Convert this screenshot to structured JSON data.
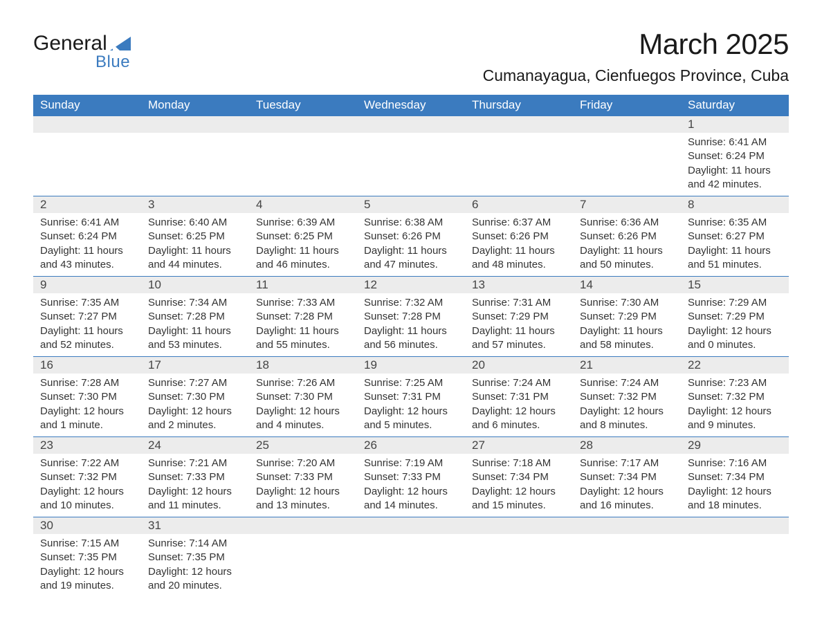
{
  "logo": {
    "main": "General",
    "sub": "Blue",
    "triangle_color": "#3b7bbf",
    "text_color": "#1a1a1a"
  },
  "title": "March 2025",
  "location": "Cumanayagua, Cienfuegos Province, Cuba",
  "colors": {
    "header_bg": "#3b7bbf",
    "header_text": "#ffffff",
    "daynum_bg": "#ececec",
    "cell_text": "#333333",
    "rule": "#3b7bbf",
    "page_bg": "#ffffff"
  },
  "typography": {
    "title_fontsize": 42,
    "location_fontsize": 23,
    "header_fontsize": 17,
    "daynum_fontsize": 17,
    "body_fontsize": 15,
    "logo_fontsize": 30
  },
  "weekdays": [
    "Sunday",
    "Monday",
    "Tuesday",
    "Wednesday",
    "Thursday",
    "Friday",
    "Saturday"
  ],
  "weeks": [
    [
      null,
      null,
      null,
      null,
      null,
      null,
      {
        "day": "1",
        "sunrise": "Sunrise: 6:41 AM",
        "sunset": "Sunset: 6:24 PM",
        "daylight1": "Daylight: 11 hours",
        "daylight2": "and 42 minutes."
      }
    ],
    [
      {
        "day": "2",
        "sunrise": "Sunrise: 6:41 AM",
        "sunset": "Sunset: 6:24 PM",
        "daylight1": "Daylight: 11 hours",
        "daylight2": "and 43 minutes."
      },
      {
        "day": "3",
        "sunrise": "Sunrise: 6:40 AM",
        "sunset": "Sunset: 6:25 PM",
        "daylight1": "Daylight: 11 hours",
        "daylight2": "and 44 minutes."
      },
      {
        "day": "4",
        "sunrise": "Sunrise: 6:39 AM",
        "sunset": "Sunset: 6:25 PM",
        "daylight1": "Daylight: 11 hours",
        "daylight2": "and 46 minutes."
      },
      {
        "day": "5",
        "sunrise": "Sunrise: 6:38 AM",
        "sunset": "Sunset: 6:26 PM",
        "daylight1": "Daylight: 11 hours",
        "daylight2": "and 47 minutes."
      },
      {
        "day": "6",
        "sunrise": "Sunrise: 6:37 AM",
        "sunset": "Sunset: 6:26 PM",
        "daylight1": "Daylight: 11 hours",
        "daylight2": "and 48 minutes."
      },
      {
        "day": "7",
        "sunrise": "Sunrise: 6:36 AM",
        "sunset": "Sunset: 6:26 PM",
        "daylight1": "Daylight: 11 hours",
        "daylight2": "and 50 minutes."
      },
      {
        "day": "8",
        "sunrise": "Sunrise: 6:35 AM",
        "sunset": "Sunset: 6:27 PM",
        "daylight1": "Daylight: 11 hours",
        "daylight2": "and 51 minutes."
      }
    ],
    [
      {
        "day": "9",
        "sunrise": "Sunrise: 7:35 AM",
        "sunset": "Sunset: 7:27 PM",
        "daylight1": "Daylight: 11 hours",
        "daylight2": "and 52 minutes."
      },
      {
        "day": "10",
        "sunrise": "Sunrise: 7:34 AM",
        "sunset": "Sunset: 7:28 PM",
        "daylight1": "Daylight: 11 hours",
        "daylight2": "and 53 minutes."
      },
      {
        "day": "11",
        "sunrise": "Sunrise: 7:33 AM",
        "sunset": "Sunset: 7:28 PM",
        "daylight1": "Daylight: 11 hours",
        "daylight2": "and 55 minutes."
      },
      {
        "day": "12",
        "sunrise": "Sunrise: 7:32 AM",
        "sunset": "Sunset: 7:28 PM",
        "daylight1": "Daylight: 11 hours",
        "daylight2": "and 56 minutes."
      },
      {
        "day": "13",
        "sunrise": "Sunrise: 7:31 AM",
        "sunset": "Sunset: 7:29 PM",
        "daylight1": "Daylight: 11 hours",
        "daylight2": "and 57 minutes."
      },
      {
        "day": "14",
        "sunrise": "Sunrise: 7:30 AM",
        "sunset": "Sunset: 7:29 PM",
        "daylight1": "Daylight: 11 hours",
        "daylight2": "and 58 minutes."
      },
      {
        "day": "15",
        "sunrise": "Sunrise: 7:29 AM",
        "sunset": "Sunset: 7:29 PM",
        "daylight1": "Daylight: 12 hours",
        "daylight2": "and 0 minutes."
      }
    ],
    [
      {
        "day": "16",
        "sunrise": "Sunrise: 7:28 AM",
        "sunset": "Sunset: 7:30 PM",
        "daylight1": "Daylight: 12 hours",
        "daylight2": "and 1 minute."
      },
      {
        "day": "17",
        "sunrise": "Sunrise: 7:27 AM",
        "sunset": "Sunset: 7:30 PM",
        "daylight1": "Daylight: 12 hours",
        "daylight2": "and 2 minutes."
      },
      {
        "day": "18",
        "sunrise": "Sunrise: 7:26 AM",
        "sunset": "Sunset: 7:30 PM",
        "daylight1": "Daylight: 12 hours",
        "daylight2": "and 4 minutes."
      },
      {
        "day": "19",
        "sunrise": "Sunrise: 7:25 AM",
        "sunset": "Sunset: 7:31 PM",
        "daylight1": "Daylight: 12 hours",
        "daylight2": "and 5 minutes."
      },
      {
        "day": "20",
        "sunrise": "Sunrise: 7:24 AM",
        "sunset": "Sunset: 7:31 PM",
        "daylight1": "Daylight: 12 hours",
        "daylight2": "and 6 minutes."
      },
      {
        "day": "21",
        "sunrise": "Sunrise: 7:24 AM",
        "sunset": "Sunset: 7:32 PM",
        "daylight1": "Daylight: 12 hours",
        "daylight2": "and 8 minutes."
      },
      {
        "day": "22",
        "sunrise": "Sunrise: 7:23 AM",
        "sunset": "Sunset: 7:32 PM",
        "daylight1": "Daylight: 12 hours",
        "daylight2": "and 9 minutes."
      }
    ],
    [
      {
        "day": "23",
        "sunrise": "Sunrise: 7:22 AM",
        "sunset": "Sunset: 7:32 PM",
        "daylight1": "Daylight: 12 hours",
        "daylight2": "and 10 minutes."
      },
      {
        "day": "24",
        "sunrise": "Sunrise: 7:21 AM",
        "sunset": "Sunset: 7:33 PM",
        "daylight1": "Daylight: 12 hours",
        "daylight2": "and 11 minutes."
      },
      {
        "day": "25",
        "sunrise": "Sunrise: 7:20 AM",
        "sunset": "Sunset: 7:33 PM",
        "daylight1": "Daylight: 12 hours",
        "daylight2": "and 13 minutes."
      },
      {
        "day": "26",
        "sunrise": "Sunrise: 7:19 AM",
        "sunset": "Sunset: 7:33 PM",
        "daylight1": "Daylight: 12 hours",
        "daylight2": "and 14 minutes."
      },
      {
        "day": "27",
        "sunrise": "Sunrise: 7:18 AM",
        "sunset": "Sunset: 7:34 PM",
        "daylight1": "Daylight: 12 hours",
        "daylight2": "and 15 minutes."
      },
      {
        "day": "28",
        "sunrise": "Sunrise: 7:17 AM",
        "sunset": "Sunset: 7:34 PM",
        "daylight1": "Daylight: 12 hours",
        "daylight2": "and 16 minutes."
      },
      {
        "day": "29",
        "sunrise": "Sunrise: 7:16 AM",
        "sunset": "Sunset: 7:34 PM",
        "daylight1": "Daylight: 12 hours",
        "daylight2": "and 18 minutes."
      }
    ],
    [
      {
        "day": "30",
        "sunrise": "Sunrise: 7:15 AM",
        "sunset": "Sunset: 7:35 PM",
        "daylight1": "Daylight: 12 hours",
        "daylight2": "and 19 minutes."
      },
      {
        "day": "31",
        "sunrise": "Sunrise: 7:14 AM",
        "sunset": "Sunset: 7:35 PM",
        "daylight1": "Daylight: 12 hours",
        "daylight2": "and 20 minutes."
      },
      null,
      null,
      null,
      null,
      null
    ]
  ]
}
